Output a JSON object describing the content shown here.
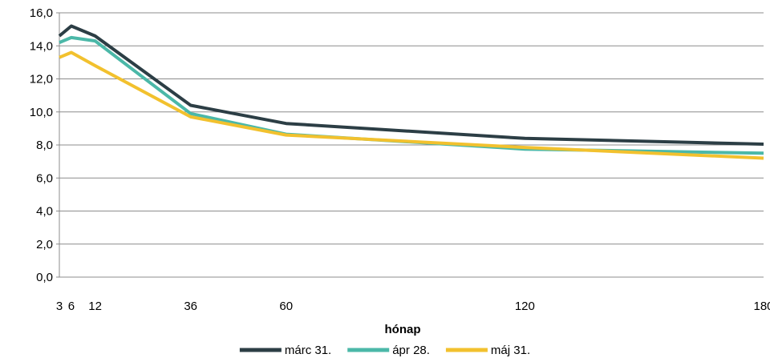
{
  "chart_data": {
    "type": "line",
    "xlabel": "hónap",
    "ylabel": "",
    "ylim": [
      0,
      16
    ],
    "yticks": [
      "0,0",
      "2,0",
      "4,0",
      "6,0",
      "8,0",
      "10,0",
      "12,0",
      "14,0",
      "16,0"
    ],
    "ytick_values": [
      0,
      2,
      4,
      6,
      8,
      10,
      12,
      14,
      16
    ],
    "xlim": [
      3,
      180
    ],
    "xticks": [
      3,
      6,
      12,
      36,
      60,
      120,
      180
    ],
    "xtick_labels": [
      "3",
      "6",
      "12",
      "36",
      "60",
      "120",
      "180"
    ],
    "grid": "horizontal",
    "legend_position": "bottom",
    "x": [
      3,
      6,
      12,
      36,
      60,
      120,
      180
    ],
    "series": [
      {
        "name": "márc 31.",
        "color": "#2c3e45",
        "values": [
          14.6,
          15.2,
          14.6,
          10.4,
          9.3,
          8.4,
          8.05
        ]
      },
      {
        "name": "ápr 28.",
        "color": "#4bb8a8",
        "values": [
          14.2,
          14.5,
          14.3,
          9.9,
          8.65,
          7.75,
          7.5
        ]
      },
      {
        "name": "máj 31.",
        "color": "#f2c12e",
        "values": [
          13.3,
          13.6,
          12.8,
          9.7,
          8.6,
          7.85,
          7.2
        ]
      }
    ]
  }
}
